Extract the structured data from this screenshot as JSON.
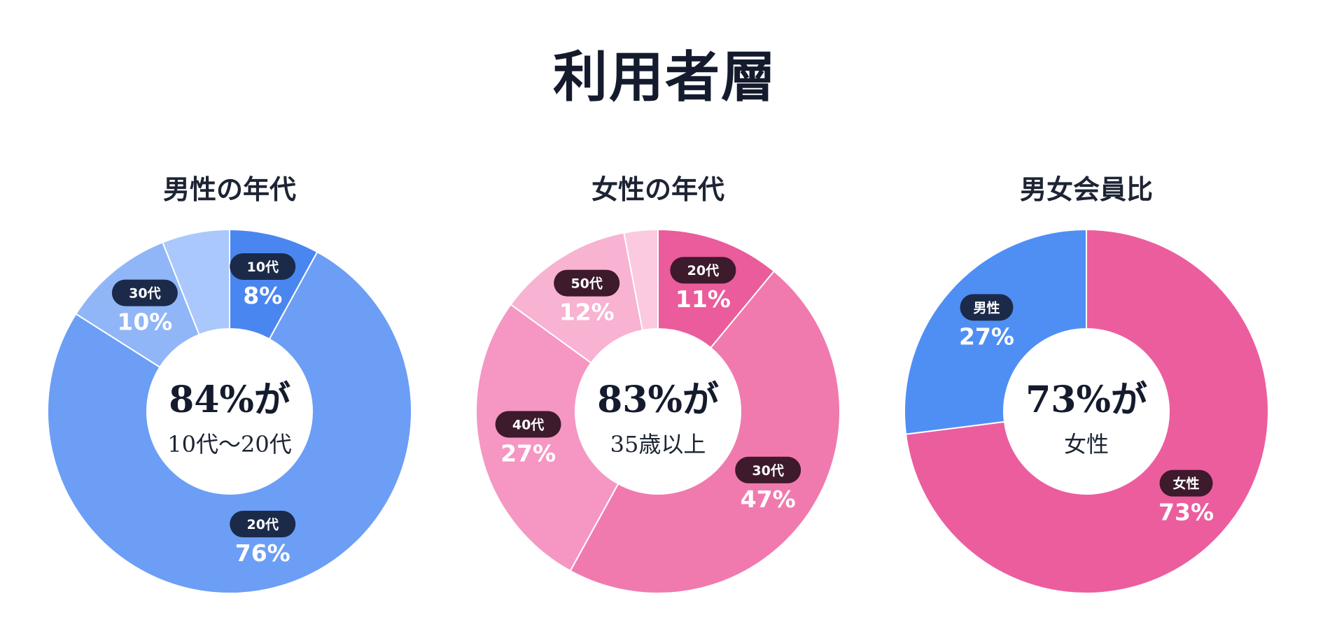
{
  "page": {
    "title": "利用者層"
  },
  "chart_data": [
    {
      "type": "pie",
      "title": "男性の年代",
      "center": {
        "value": "84%が",
        "label": "10代〜20代"
      },
      "pill_color": "#1c2a4a",
      "slices": [
        {
          "label": "10代",
          "value": 8,
          "color": "#4a86ef",
          "show_label": true
        },
        {
          "label": "20代",
          "value": 76,
          "color": "#6c9ef5",
          "show_label": true
        },
        {
          "label": "30代",
          "value": 10,
          "color": "#90b6f8",
          "show_label": true
        },
        {
          "label": "",
          "value": 6,
          "color": "#aac8fb",
          "show_label": false
        }
      ]
    },
    {
      "type": "pie",
      "title": "女性の年代",
      "center": {
        "value": "83%が",
        "label": "35歳以上"
      },
      "pill_color": "#3d1a2c",
      "slices": [
        {
          "label": "20代",
          "value": 11,
          "color": "#ea5c9b",
          "show_label": true
        },
        {
          "label": "30代",
          "value": 47,
          "color": "#f07aae",
          "show_label": true
        },
        {
          "label": "40代",
          "value": 27,
          "color": "#f597c2",
          "show_label": true
        },
        {
          "label": "50代",
          "value": 12,
          "color": "#f8b2d2",
          "show_label": true
        },
        {
          "label": "",
          "value": 3,
          "color": "#fbc9e0",
          "show_label": false
        }
      ]
    },
    {
      "type": "pie",
      "title": "男女会員比",
      "center": {
        "value": "73%が",
        "label": "女性"
      },
      "pill_color": "#1c2a4a",
      "slices": [
        {
          "label": "女性",
          "value": 73,
          "color": "#ec5d9e",
          "show_label": true,
          "pill_color": "#3d1a2c"
        },
        {
          "label": "男性",
          "value": 27,
          "color": "#4f8ff4",
          "show_label": true,
          "pill_color": "#1c2a4a"
        }
      ]
    }
  ]
}
